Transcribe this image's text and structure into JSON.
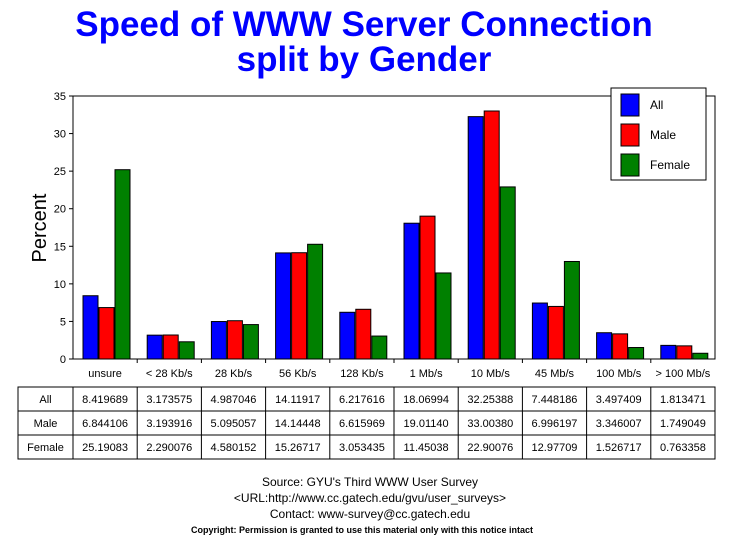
{
  "chart_data": {
    "type": "bar",
    "title": [
      "Speed of WWW Server Connection",
      "split by Gender"
    ],
    "ylabel": "Percent",
    "xlabel": "",
    "ylim": [
      0,
      35
    ],
    "yticks": [
      0,
      5,
      10,
      15,
      20,
      25,
      30,
      35
    ],
    "categories": [
      "unsure",
      "< 28 Kb/s",
      "28 Kb/s",
      "56 Kb/s",
      "128 Kb/s",
      "1 Mb/s",
      "10 Mb/s",
      "45 Mb/s",
      "100 Mb/s",
      "> 100 Mb/s"
    ],
    "series": [
      {
        "name": "All",
        "color": "#0000ff",
        "values": [
          8.419689,
          3.173575,
          4.987046,
          14.11917,
          6.217616,
          18.06994,
          32.25388,
          7.448186,
          3.497409,
          1.813471
        ],
        "labels": [
          "8.419689",
          "3.173575",
          "4.987046",
          "14.11917",
          "6.217616",
          "18.06994",
          "32.25388",
          "7.448186",
          "3.497409",
          "1.813471"
        ]
      },
      {
        "name": "Male",
        "color": "#ff0000",
        "values": [
          6.844106,
          3.193916,
          5.095057,
          14.14448,
          6.615969,
          19.0114,
          33.0038,
          6.996197,
          3.346007,
          1.749049
        ],
        "labels": [
          "6.844106",
          "3.193916",
          "5.095057",
          "14.14448",
          "6.615969",
          "19.01140",
          "33.00380",
          "6.996197",
          "3.346007",
          "1.749049"
        ]
      },
      {
        "name": "Female",
        "color": "#008000",
        "values": [
          25.19083,
          2.290076,
          4.580152,
          15.26717,
          3.053435,
          11.45038,
          22.90076,
          12.97709,
          1.526717,
          0.763358
        ],
        "labels": [
          "25.19083",
          "2.290076",
          "4.580152",
          "15.26717",
          "3.053435",
          "11.45038",
          "22.90076",
          "12.97709",
          "1.526717",
          "0.763358"
        ]
      }
    ],
    "legend": "top-right",
    "grid": false
  },
  "footer": {
    "source": "Source: GYU's Third WWW User Survey",
    "url": "<URL:http://www.cc.gatech.edu/gvu/user_surveys>",
    "contact": "Contact: www-survey@cc.gatech.edu",
    "copyright": "Copyright: Permission is granted to use this material only with this notice intact"
  }
}
